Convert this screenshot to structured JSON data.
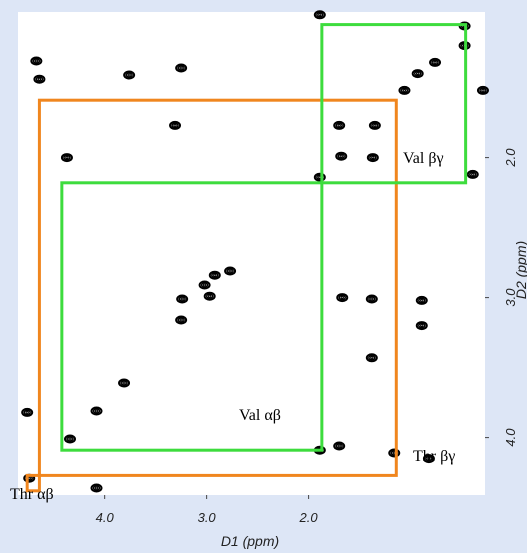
{
  "chart_data": {
    "type": "contour",
    "x_label": "D1 (ppm)",
    "y_label": "D2 (ppm)",
    "xlim": [
      4.85,
      0.27
    ],
    "ylim": [
      4.41,
      0.96
    ],
    "xticks": [
      {
        "value": 4.0,
        "label": "4.0"
      },
      {
        "value": 3.0,
        "label": "3.0"
      },
      {
        "value": 2.0,
        "label": "2.0"
      }
    ],
    "yticks": [
      {
        "value": 2.0,
        "label": "2.0"
      },
      {
        "value": 3.0,
        "label": "3.0"
      },
      {
        "value": 4.0,
        "label": "4.0"
      }
    ],
    "peaks": {
      "color": "#000000",
      "x": [
        4.67,
        4.64,
        4.37,
        3.76,
        3.25,
        3.31,
        4.76,
        4.74,
        4.34,
        4.08,
        3.81,
        3.25,
        3.24,
        3.02,
        2.92,
        2.77,
        2.97,
        1.89,
        1.7,
        1.68,
        1.35,
        1.37,
        1.06,
        0.93,
        0.76,
        0.47,
        0.47,
        0.39,
        4.08,
        1.89,
        1.67,
        1.38,
        0.89,
        0.89,
        0.82,
        1.16,
        1.38,
        1.7,
        1.89,
        0.29
      ],
      "y": [
        1.31,
        1.44,
        2.0,
        1.41,
        1.36,
        1.77,
        3.82,
        4.29,
        4.01,
        3.81,
        3.61,
        3.16,
        3.01,
        2.91,
        2.84,
        2.81,
        2.99,
        2.14,
        1.77,
        1.99,
        1.77,
        2.0,
        1.52,
        1.4,
        1.32,
        1.06,
        1.2,
        2.12,
        4.36,
        0.98,
        3.0,
        3.01,
        3.2,
        3.02,
        4.15,
        4.11,
        3.43,
        4.06,
        4.09,
        1.52
      ]
    },
    "boxes": [
      {
        "color": "#f0861e",
        "x": [
          4.64,
          1.14
        ],
        "y": [
          1.59,
          4.27
        ]
      },
      {
        "color": "#f0861e",
        "x": [
          4.76,
          4.64
        ],
        "y": [
          4.27,
          4.38
        ]
      },
      {
        "color": "#3ddc3d",
        "x": [
          4.42,
          1.87
        ],
        "y": [
          2.18,
          4.09
        ]
      },
      {
        "color": "#3ddc3d",
        "x": [
          1.87,
          0.46
        ],
        "y": [
          1.05,
          2.18
        ]
      }
    ],
    "annotations": [
      "Val βγ",
      "Val αβ",
      "Thr βγ",
      "Thr αβ"
    ]
  }
}
